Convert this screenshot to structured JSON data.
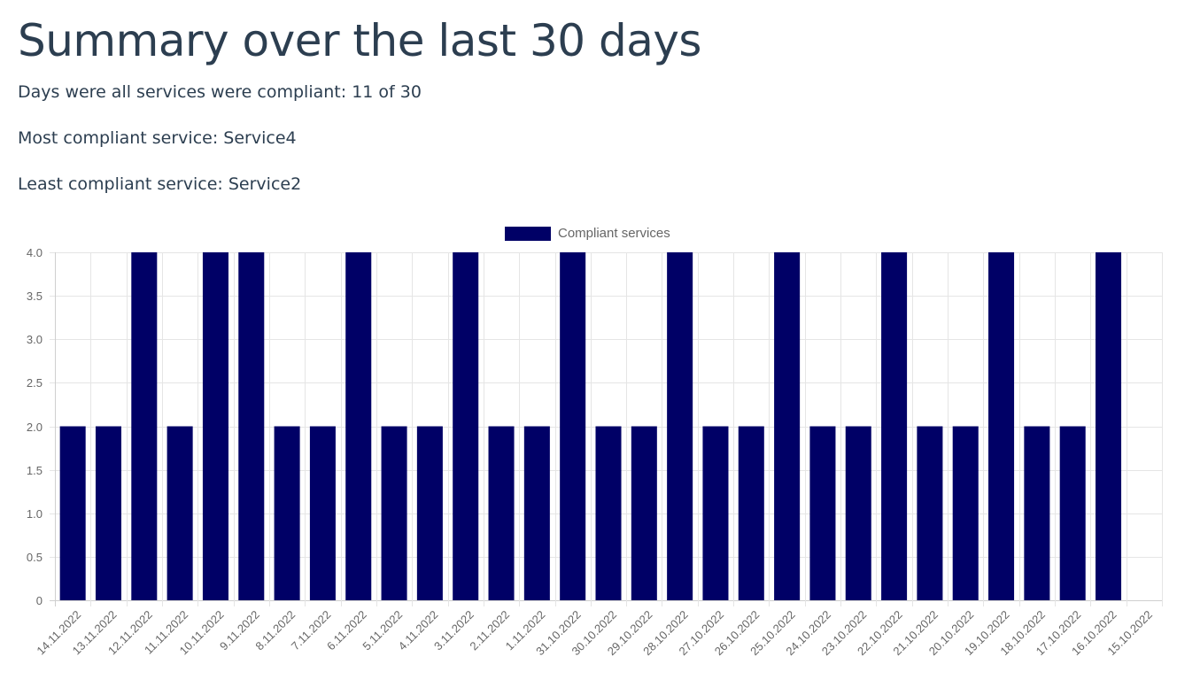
{
  "page": {
    "title": "Summary over the last 30 days",
    "stats": [
      {
        "label": "Days were all services were compliant:",
        "value": "11 of 30"
      },
      {
        "label": "Most compliant service:",
        "value": "Service4"
      },
      {
        "label": "Least compliant service:",
        "value": "Service2"
      }
    ]
  },
  "chart_data": {
    "type": "bar",
    "legend": {
      "position": "top-center"
    },
    "series": [
      {
        "name": "Compliant services",
        "color": "#000066",
        "values": [
          2,
          2,
          4,
          2,
          4,
          4,
          2,
          2,
          4,
          2,
          2,
          4,
          2,
          2,
          4,
          2,
          2,
          4,
          2,
          2,
          4,
          2,
          2,
          4,
          2,
          2,
          4,
          2,
          2,
          4,
          0
        ]
      }
    ],
    "categories": [
      "14.11.2022",
      "13.11.2022",
      "12.11.2022",
      "11.11.2022",
      "10.11.2022",
      "9.11.2022",
      "8.11.2022",
      "7.11.2022",
      "6.11.2022",
      "5.11.2022",
      "4.11.2022",
      "3.11.2022",
      "2.11.2022",
      "1.11.2022",
      "31.10.2022",
      "30.10.2022",
      "29.10.2022",
      "28.10.2022",
      "27.10.2022",
      "26.10.2022",
      "25.10.2022",
      "24.10.2022",
      "23.10.2022",
      "22.10.2022",
      "21.10.2022",
      "20.10.2022",
      "19.10.2022",
      "18.10.2022",
      "17.10.2022",
      "16.10.2022",
      "15.10.2022"
    ],
    "ylim": [
      0,
      4
    ],
    "yticks": [
      "0",
      "0.5",
      "1.0",
      "1.5",
      "2.0",
      "2.5",
      "3.0",
      "3.5",
      "4.0"
    ],
    "grid": true
  }
}
